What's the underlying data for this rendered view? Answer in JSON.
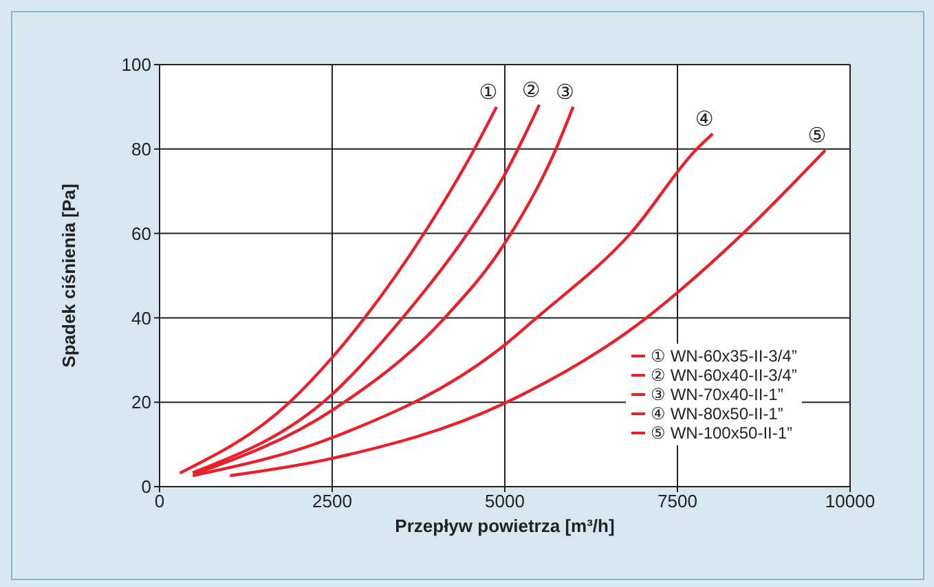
{
  "chart_data": {
    "type": "line",
    "xlabel": "Przepływ powietrza [m³/h]",
    "ylabel": "Spadek ciśnienia [Pa]",
    "xlim": [
      0,
      10000
    ],
    "xticks": [
      0,
      2500,
      5000,
      7500,
      10000
    ],
    "ylim": [
      0,
      100
    ],
    "yticks": [
      0,
      20,
      40,
      60,
      80,
      100
    ],
    "grid": true,
    "legend": "bottom right",
    "marker": "none",
    "line_style": "solid",
    "series": [
      {
        "name": "① WN-60x35-II-3/4”",
        "color": "#e8202a",
        "x": [
          293,
          1870,
          2500,
          2970,
          3830,
          4560,
          4880
        ],
        "values": [
          3.2,
          19.8,
          30.6,
          40,
          60,
          80,
          90
        ]
      },
      {
        "name": "② WN-60x40-II-3/4”",
        "color": "#e8202a",
        "x": [
          478,
          2500,
          3520,
          4460,
          5000,
          5500
        ],
        "values": [
          3.3,
          21.9,
          40,
          60,
          74,
          90.5
        ]
      },
      {
        "name": "③ WN-70x40-II-1”",
        "color": "#e8202a",
        "x": [
          510,
          2500,
          4130,
          5000,
          5740,
          5990
        ],
        "values": [
          3,
          18.1,
          40,
          57.7,
          80,
          90
        ]
      },
      {
        "name": "④ WN-80x50-II-1”",
        "color": "#e8202a",
        "x": [
          480,
          2500,
          5000,
          5460,
          6820,
          7780,
          8010
        ],
        "values": [
          2.6,
          11.6,
          33.6,
          40,
          60,
          80,
          83.6
        ]
      },
      {
        "name": "⑤ WN-100x50-II-1”",
        "color": "#e8202a",
        "x": [
          1020,
          2500,
          5000,
          7050,
          7500,
          8450,
          9640
        ],
        "values": [
          2.6,
          6.7,
          19.8,
          40,
          46,
          60,
          79.7
        ]
      }
    ],
    "annotations": [
      "①",
      "②",
      "③",
      "④",
      "⑤"
    ]
  }
}
